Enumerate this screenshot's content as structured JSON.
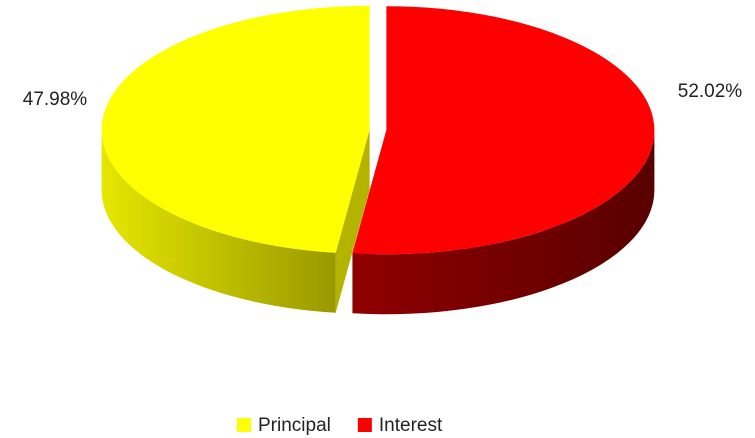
{
  "chart_data": {
    "type": "pie",
    "categories": [
      "Principal",
      "Interest"
    ],
    "values": [
      47.98,
      52.02
    ],
    "value_labels": [
      "47.98%",
      "52.02%"
    ],
    "colors": [
      "#ffff00",
      "#ff0000"
    ],
    "legend": "bottom"
  }
}
